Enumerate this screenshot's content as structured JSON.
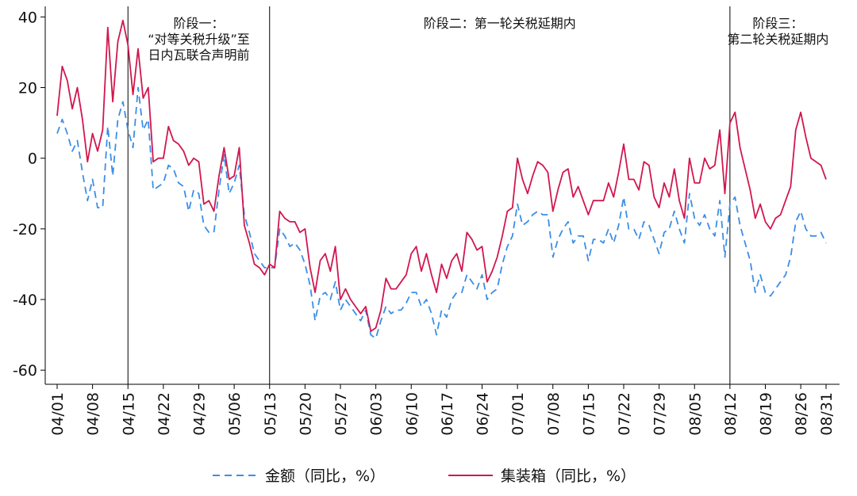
{
  "chart_data": {
    "type": "line",
    "categories": [
      "04/01",
      null,
      null,
      null,
      null,
      null,
      null,
      "04/08",
      null,
      null,
      null,
      null,
      null,
      null,
      "04/15",
      null,
      null,
      null,
      null,
      null,
      null,
      "04/22",
      null,
      null,
      null,
      null,
      null,
      null,
      "04/29",
      null,
      null,
      null,
      null,
      null,
      null,
      "05/06",
      null,
      null,
      null,
      null,
      null,
      null,
      "05/13",
      null,
      null,
      null,
      null,
      null,
      null,
      "05/20",
      null,
      null,
      null,
      null,
      null,
      null,
      "05/27",
      null,
      null,
      null,
      null,
      null,
      null,
      "06/03",
      null,
      null,
      null,
      null,
      null,
      null,
      "06/10",
      null,
      null,
      null,
      null,
      null,
      null,
      "06/17",
      null,
      null,
      null,
      null,
      null,
      null,
      "06/24",
      null,
      null,
      null,
      null,
      null,
      null,
      "07/01",
      null,
      null,
      null,
      null,
      null,
      null,
      "07/08",
      null,
      null,
      null,
      null,
      null,
      null,
      "07/15",
      null,
      null,
      null,
      null,
      null,
      null,
      "07/22",
      null,
      null,
      null,
      null,
      null,
      null,
      "07/29",
      null,
      null,
      null,
      null,
      null,
      null,
      "08/05",
      null,
      null,
      null,
      null,
      null,
      null,
      "08/12",
      null,
      null,
      null,
      null,
      null,
      null,
      "08/19",
      null,
      null,
      null,
      null,
      null,
      null,
      "08/26",
      null,
      null,
      null,
      null,
      "08/31"
    ],
    "series": [
      {
        "name": "金额（同比，%）",
        "color": "#3b8ee6",
        "line_style": "dashed",
        "values": [
          7,
          11,
          7,
          2,
          5,
          -4,
          -12,
          -6,
          -14,
          -14,
          9,
          -5,
          11,
          16,
          8,
          3,
          20,
          8,
          11,
          -9,
          -8,
          -7,
          -2,
          -3,
          -7,
          -8,
          -15,
          -9,
          -10,
          -19,
          -21,
          -21,
          -9,
          1,
          -10,
          -7,
          -2,
          -16,
          -21,
          -27,
          -29,
          -31,
          -31,
          -31,
          -20,
          -22,
          -25,
          -24,
          -26,
          -30,
          -36,
          -46,
          -39,
          -38,
          -40,
          -35,
          -43,
          -40,
          -42,
          -44,
          -46,
          -43,
          -50,
          -51,
          -46,
          -42,
          -44,
          -43,
          -43,
          -41,
          -38,
          -38,
          -42,
          -40,
          -44,
          -50,
          -43,
          -45,
          -40,
          -38,
          -38,
          -33,
          -35,
          -37,
          -33,
          -40,
          -38,
          -37,
          -30,
          -25,
          -22,
          -13,
          -19,
          -18,
          -16,
          -15,
          -16,
          -16,
          -28,
          -23,
          -20,
          -18,
          -24,
          -22,
          -22,
          -29,
          -23,
          -23,
          -24,
          -20,
          -24,
          -19,
          -11,
          -20,
          -20,
          -23,
          -18,
          -19,
          -23,
          -27,
          -21,
          -20,
          -15,
          -20,
          -24,
          -10,
          -17,
          -19,
          -16,
          -20,
          -22,
          -12,
          -28,
          -13,
          -11,
          -19,
          -24,
          -29,
          -38,
          -33,
          -38,
          -39,
          -37,
          -35,
          -33,
          -28,
          -18,
          -15,
          -20,
          -22,
          -22,
          -21,
          -24
        ]
      },
      {
        "name": "集装箱（同比，%）",
        "color": "#d1174f",
        "line_style": "solid",
        "values": [
          12,
          26,
          22,
          14,
          20,
          11,
          -1,
          7,
          2,
          8,
          37,
          16,
          33,
          39,
          32,
          18,
          31,
          17,
          20,
          -1,
          0,
          0,
          9,
          5,
          4,
          2,
          -2,
          0,
          -1,
          -13,
          -12,
          -15,
          -5,
          3,
          -6,
          -5,
          3,
          -19,
          -24,
          -30,
          -31,
          -33,
          -30,
          -31,
          -15,
          -17,
          -18,
          -18,
          -21,
          -20,
          -31,
          -38,
          -29,
          -27,
          -32,
          -25,
          -40,
          -37,
          -40,
          -42,
          -44,
          -42,
          -49,
          -48,
          -43,
          -34,
          -37,
          -37,
          -35,
          -33,
          -27,
          -25,
          -32,
          -27,
          -33,
          -38,
          -30,
          -34,
          -29,
          -27,
          -32,
          -21,
          -23,
          -26,
          -25,
          -35,
          -32,
          -28,
          -22,
          -15,
          -14,
          0,
          -6,
          -10,
          -5,
          -1,
          -2,
          -4,
          -15,
          -9,
          -4,
          -3,
          -11,
          -8,
          -12,
          -16,
          -12,
          -12,
          -12,
          -7,
          -11,
          -4,
          4,
          -6,
          -6,
          -9,
          -1,
          -2,
          -11,
          -14,
          -7,
          -11,
          -3,
          -12,
          -17,
          0,
          -7,
          -7,
          0,
          -3,
          -2,
          8,
          -10,
          10,
          13,
          3,
          -3,
          -9,
          -17,
          -13,
          -18,
          -20,
          -17,
          -16,
          -12,
          -8,
          8,
          13,
          6,
          0,
          -1,
          -2,
          -6
        ]
      }
    ],
    "ylim": [
      -64,
      43
    ],
    "yticks": [
      40,
      20,
      0,
      -20,
      -40,
      -60
    ],
    "grid": false,
    "legend": "bottom",
    "phases": [
      {
        "label": [
          "阶段一：",
          "“对等关税升级”至",
          "日内瓦联合声明前"
        ],
        "start": "04/15",
        "end": "05/13"
      },
      {
        "label": [
          "阶段二：第一轮关税延期内"
        ],
        "start": "05/13",
        "end": "08/12"
      },
      {
        "label": [
          "阶段三：",
          "第二轮关税延期内"
        ],
        "start": "08/12",
        "end": "08/31"
      }
    ]
  }
}
